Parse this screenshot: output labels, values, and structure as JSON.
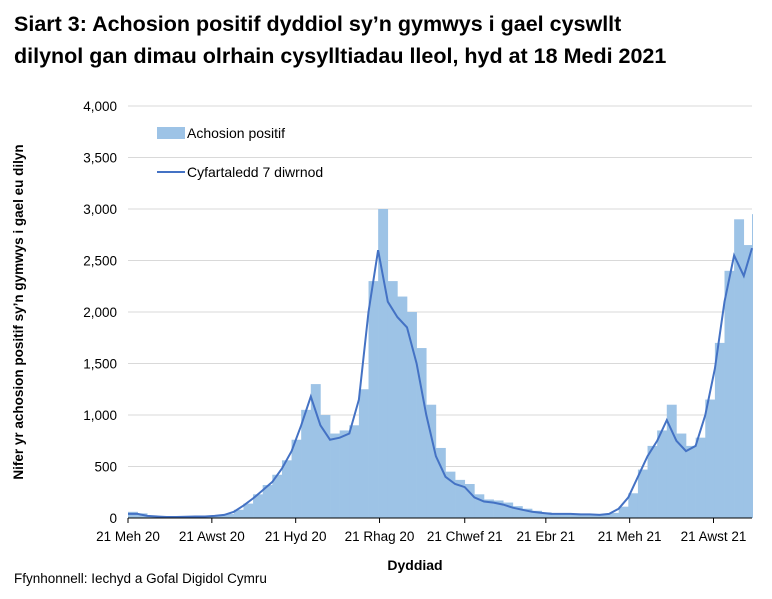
{
  "chart_data": {
    "type": "bar+line",
    "title_lines": [
      "Siart 3: Achosion positif dyddiol sy’n gymwys i gael cyswllt",
      "dilynol gan dimau olrhain cysylltiadau lleol, hyd at 18 Medi 2021"
    ],
    "xlabel": "Dyddiad",
    "ylabel": "Nifer yr achosion positif sy’n gymwys i gael eu dilyn",
    "source": "Ffynhonnell: Iechyd a Gofal Digidol Cymru",
    "xlim": [
      "2020-06-21",
      "2021-09-18"
    ],
    "ylim": [
      0,
      4000
    ],
    "y_ticks": [
      "0",
      "500",
      "1,000",
      "1,500",
      "2,000",
      "2,500",
      "3,000",
      "3,500",
      "4,000"
    ],
    "x_ticks": [
      {
        "date": "2020-06-21",
        "label": "21 Meh 20"
      },
      {
        "date": "2020-08-21",
        "label": "21 Awst 20"
      },
      {
        "date": "2020-10-21",
        "label": "21 Hyd 20"
      },
      {
        "date": "2020-12-21",
        "label": "21 Rhag 20"
      },
      {
        "date": "2021-02-21",
        "label": "21 Chwef 21"
      },
      {
        "date": "2021-04-21",
        "label": "21 Ebr 21"
      },
      {
        "date": "2021-06-21",
        "label": "21 Meh 21"
      },
      {
        "date": "2021-08-21",
        "label": "21 Awst 21"
      }
    ],
    "grid": "horizontal",
    "legend_position": "top-left",
    "series": [
      {
        "name": "Achosion positif",
        "kind": "bar",
        "color": "#9dc3e6"
      },
      {
        "name": "Cyfartaledd 7 diwrnod",
        "kind": "line",
        "color": "#4472c4"
      }
    ],
    "dates": [
      "2020-06-21",
      "2020-06-28",
      "2020-07-05",
      "2020-07-12",
      "2020-07-19",
      "2020-07-26",
      "2020-08-02",
      "2020-08-09",
      "2020-08-16",
      "2020-08-23",
      "2020-08-30",
      "2020-09-06",
      "2020-09-13",
      "2020-09-20",
      "2020-09-27",
      "2020-10-04",
      "2020-10-11",
      "2020-10-18",
      "2020-10-25",
      "2020-11-01",
      "2020-11-08",
      "2020-11-15",
      "2020-11-22",
      "2020-11-29",
      "2020-12-06",
      "2020-12-13",
      "2020-12-20",
      "2020-12-27",
      "2021-01-03",
      "2021-01-10",
      "2021-01-17",
      "2021-01-24",
      "2021-01-31",
      "2021-02-07",
      "2021-02-14",
      "2021-02-21",
      "2021-02-28",
      "2021-03-07",
      "2021-03-14",
      "2021-03-21",
      "2021-03-28",
      "2021-04-04",
      "2021-04-11",
      "2021-04-18",
      "2021-04-25",
      "2021-05-02",
      "2021-05-09",
      "2021-05-16",
      "2021-05-23",
      "2021-05-30",
      "2021-06-06",
      "2021-06-13",
      "2021-06-20",
      "2021-06-27",
      "2021-07-04",
      "2021-07-11",
      "2021-07-18",
      "2021-07-25",
      "2021-08-01",
      "2021-08-08",
      "2021-08-15",
      "2021-08-22",
      "2021-08-29",
      "2021-09-05",
      "2021-09-12",
      "2021-09-18"
    ],
    "cases": [
      60,
      45,
      25,
      18,
      12,
      12,
      15,
      18,
      20,
      25,
      40,
      80,
      140,
      230,
      320,
      420,
      560,
      760,
      1050,
      1300,
      1000,
      820,
      850,
      900,
      1250,
      2300,
      3000,
      2300,
      2150,
      2000,
      1650,
      1100,
      680,
      450,
      370,
      330,
      230,
      180,
      170,
      150,
      115,
      90,
      70,
      55,
      45,
      45,
      45,
      40,
      40,
      35,
      50,
      110,
      240,
      470,
      700,
      850,
      1100,
      820,
      700,
      780,
      1150,
      1700,
      2400,
      2900,
      2650,
      2950
    ],
    "avg7": [
      40,
      40,
      20,
      15,
      10,
      10,
      12,
      15,
      15,
      20,
      30,
      60,
      120,
      190,
      270,
      350,
      480,
      650,
      900,
      1180,
      900,
      760,
      780,
      820,
      1150,
      2000,
      2600,
      2100,
      1950,
      1850,
      1500,
      1000,
      600,
      400,
      330,
      300,
      200,
      160,
      150,
      130,
      100,
      80,
      60,
      50,
      40,
      40,
      40,
      35,
      35,
      30,
      40,
      90,
      200,
      400,
      600,
      750,
      950,
      750,
      650,
      700,
      1000,
      1450,
      2100,
      2550,
      2350,
      2620
    ]
  }
}
